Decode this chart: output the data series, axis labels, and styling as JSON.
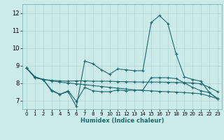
{
  "xlabel": "Humidex (Indice chaleur)",
  "ylabel": "",
  "background_color": "#cdeaea",
  "grid_color": "#aed4d4",
  "line_color": "#1a6b6b",
  "xlim": [
    -0.5,
    23.5
  ],
  "ylim": [
    6.5,
    12.5
  ],
  "yticks": [
    7,
    8,
    9,
    10,
    11,
    12
  ],
  "xticks": [
    0,
    1,
    2,
    3,
    4,
    5,
    6,
    7,
    8,
    9,
    10,
    11,
    12,
    13,
    14,
    15,
    16,
    17,
    18,
    19,
    20,
    21,
    22,
    23
  ],
  "series": [
    [
      8.85,
      8.35,
      8.2,
      7.55,
      7.35,
      7.5,
      6.65,
      9.25,
      9.1,
      8.75,
      8.5,
      8.8,
      8.75,
      8.7,
      8.7,
      11.45,
      11.85,
      11.4,
      9.65,
      8.35,
      8.2,
      8.1,
      7.45,
      7.1
    ],
    [
      8.85,
      8.35,
      8.2,
      8.15,
      8.12,
      8.1,
      8.12,
      8.12,
      8.1,
      8.1,
      8.1,
      8.08,
      8.07,
      8.06,
      8.05,
      8.05,
      8.05,
      8.04,
      8.03,
      8.02,
      8.0,
      7.95,
      7.75,
      7.5
    ],
    [
      8.85,
      8.3,
      8.2,
      8.12,
      8.05,
      8.0,
      7.95,
      7.9,
      7.85,
      7.8,
      7.75,
      7.7,
      7.65,
      7.6,
      7.57,
      7.55,
      7.52,
      7.5,
      7.48,
      7.45,
      7.42,
      7.38,
      7.25,
      7.1
    ],
    [
      8.85,
      8.3,
      8.2,
      7.6,
      7.35,
      7.55,
      6.95,
      7.75,
      7.55,
      7.5,
      7.5,
      7.6,
      7.55,
      7.6,
      7.6,
      8.3,
      8.3,
      8.3,
      8.25,
      8.0,
      7.75,
      7.55,
      7.45,
      7.1
    ]
  ],
  "series_x": [
    [
      0,
      1,
      2,
      3,
      4,
      5,
      6,
      7,
      8,
      9,
      10,
      11,
      12,
      13,
      14,
      15,
      16,
      17,
      18,
      19,
      20,
      21,
      22,
      23
    ],
    [
      0,
      1,
      2,
      3,
      4,
      5,
      6,
      7,
      8,
      9,
      10,
      11,
      12,
      13,
      14,
      15,
      16,
      17,
      18,
      19,
      20,
      21,
      22,
      23
    ],
    [
      0,
      1,
      2,
      3,
      4,
      5,
      6,
      7,
      8,
      9,
      10,
      11,
      12,
      13,
      14,
      15,
      16,
      17,
      18,
      19,
      20,
      21,
      22,
      23
    ],
    [
      0,
      1,
      2,
      3,
      4,
      5,
      6,
      7,
      8,
      9,
      10,
      11,
      12,
      13,
      14,
      15,
      16,
      17,
      18,
      19,
      20,
      21,
      22,
      23
    ]
  ],
  "marker": "+",
  "marker_size": 3.5,
  "linewidth": 0.8
}
